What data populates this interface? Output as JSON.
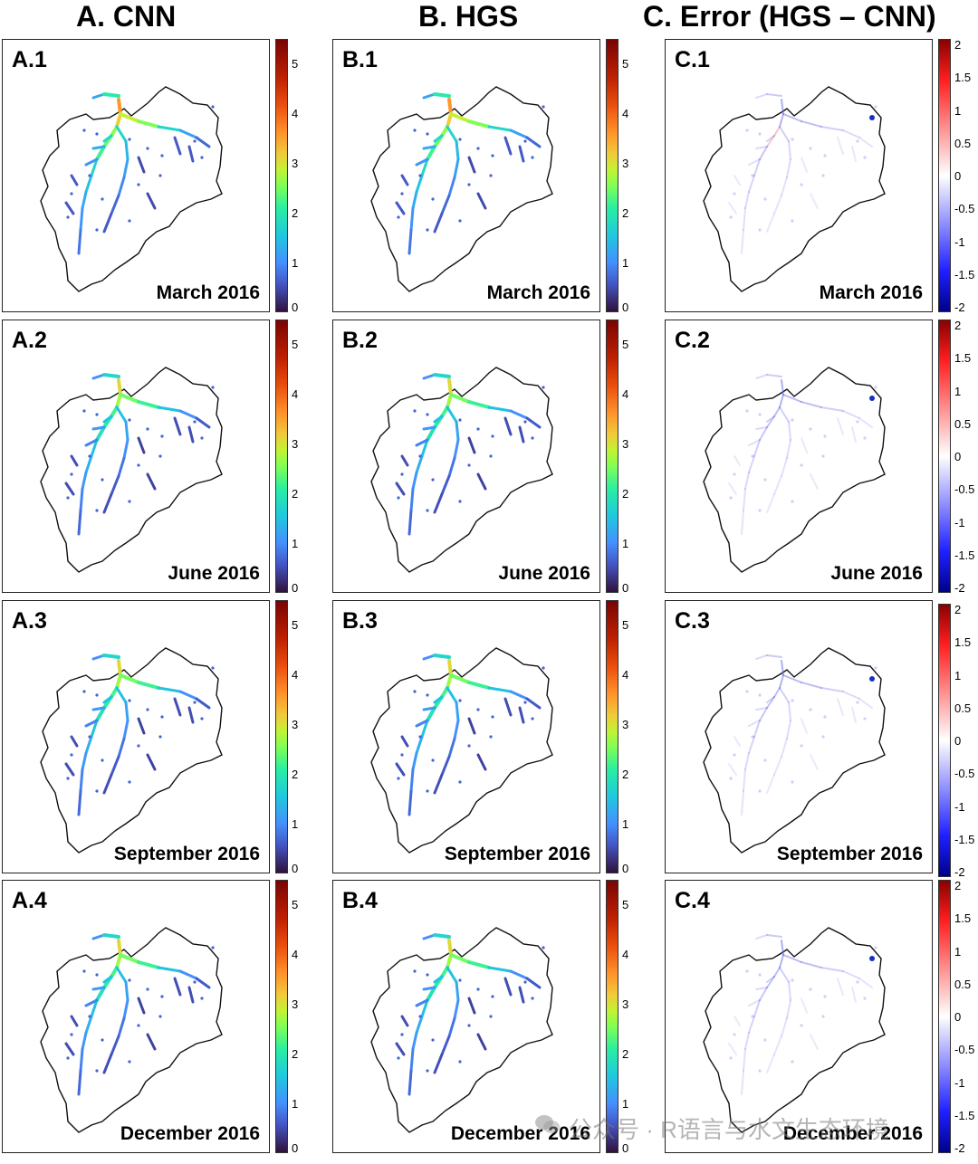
{
  "columns": [
    {
      "title": "A. CNN"
    },
    {
      "title": "B. HGS"
    },
    {
      "title": "C. Error (HGS – CNN)"
    }
  ],
  "panels": [
    {
      "label": "A.1",
      "date": "March 2016"
    },
    {
      "label": "B.1",
      "date": "March 2016"
    },
    {
      "label": "C.1",
      "date": "March 2016"
    },
    {
      "label": "A.2",
      "date": "June 2016"
    },
    {
      "label": "B.2",
      "date": "June 2016"
    },
    {
      "label": "C.2",
      "date": "June 2016"
    },
    {
      "label": "A.3",
      "date": "September 2016"
    },
    {
      "label": "B.3",
      "date": "September 2016"
    },
    {
      "label": "C.3",
      "date": "September 2016"
    },
    {
      "label": "A.4",
      "date": "December 2016"
    },
    {
      "label": "B.4",
      "date": "December 2016"
    },
    {
      "label": "C.4",
      "date": "December 2016"
    }
  ],
  "colorbars": {
    "depth_ticks": [
      "5",
      "4",
      "3",
      "2",
      "1",
      "0"
    ],
    "error_ticks": [
      "2",
      "1.5",
      "1",
      "0.5",
      "0",
      "-0.5",
      "-1",
      "-1.5",
      "-2"
    ]
  },
  "watermark": {
    "text": "公众号 · R语言与水文生态环境",
    "icon": "wechat-icon"
  },
  "chart_data": {
    "type": "heatmap",
    "layout": "4 rows x 3 columns of map panels",
    "rows": [
      "March 2016",
      "June 2016",
      "September 2016",
      "December 2016"
    ],
    "columns": [
      "A. CNN",
      "B. HGS",
      "C. Error (HGS – CNN)"
    ],
    "depth_colorbar": {
      "range": [
        0,
        5.5
      ],
      "ticks": [
        0,
        1,
        2,
        3,
        4,
        5
      ],
      "colormap": "turbo"
    },
    "error_colorbar": {
      "range": [
        -2,
        2
      ],
      "ticks": [
        -2,
        -1.5,
        -1,
        -0.5,
        0,
        0.5,
        1,
        1.5,
        2
      ],
      "colormap": "blue-white-red"
    }
  }
}
